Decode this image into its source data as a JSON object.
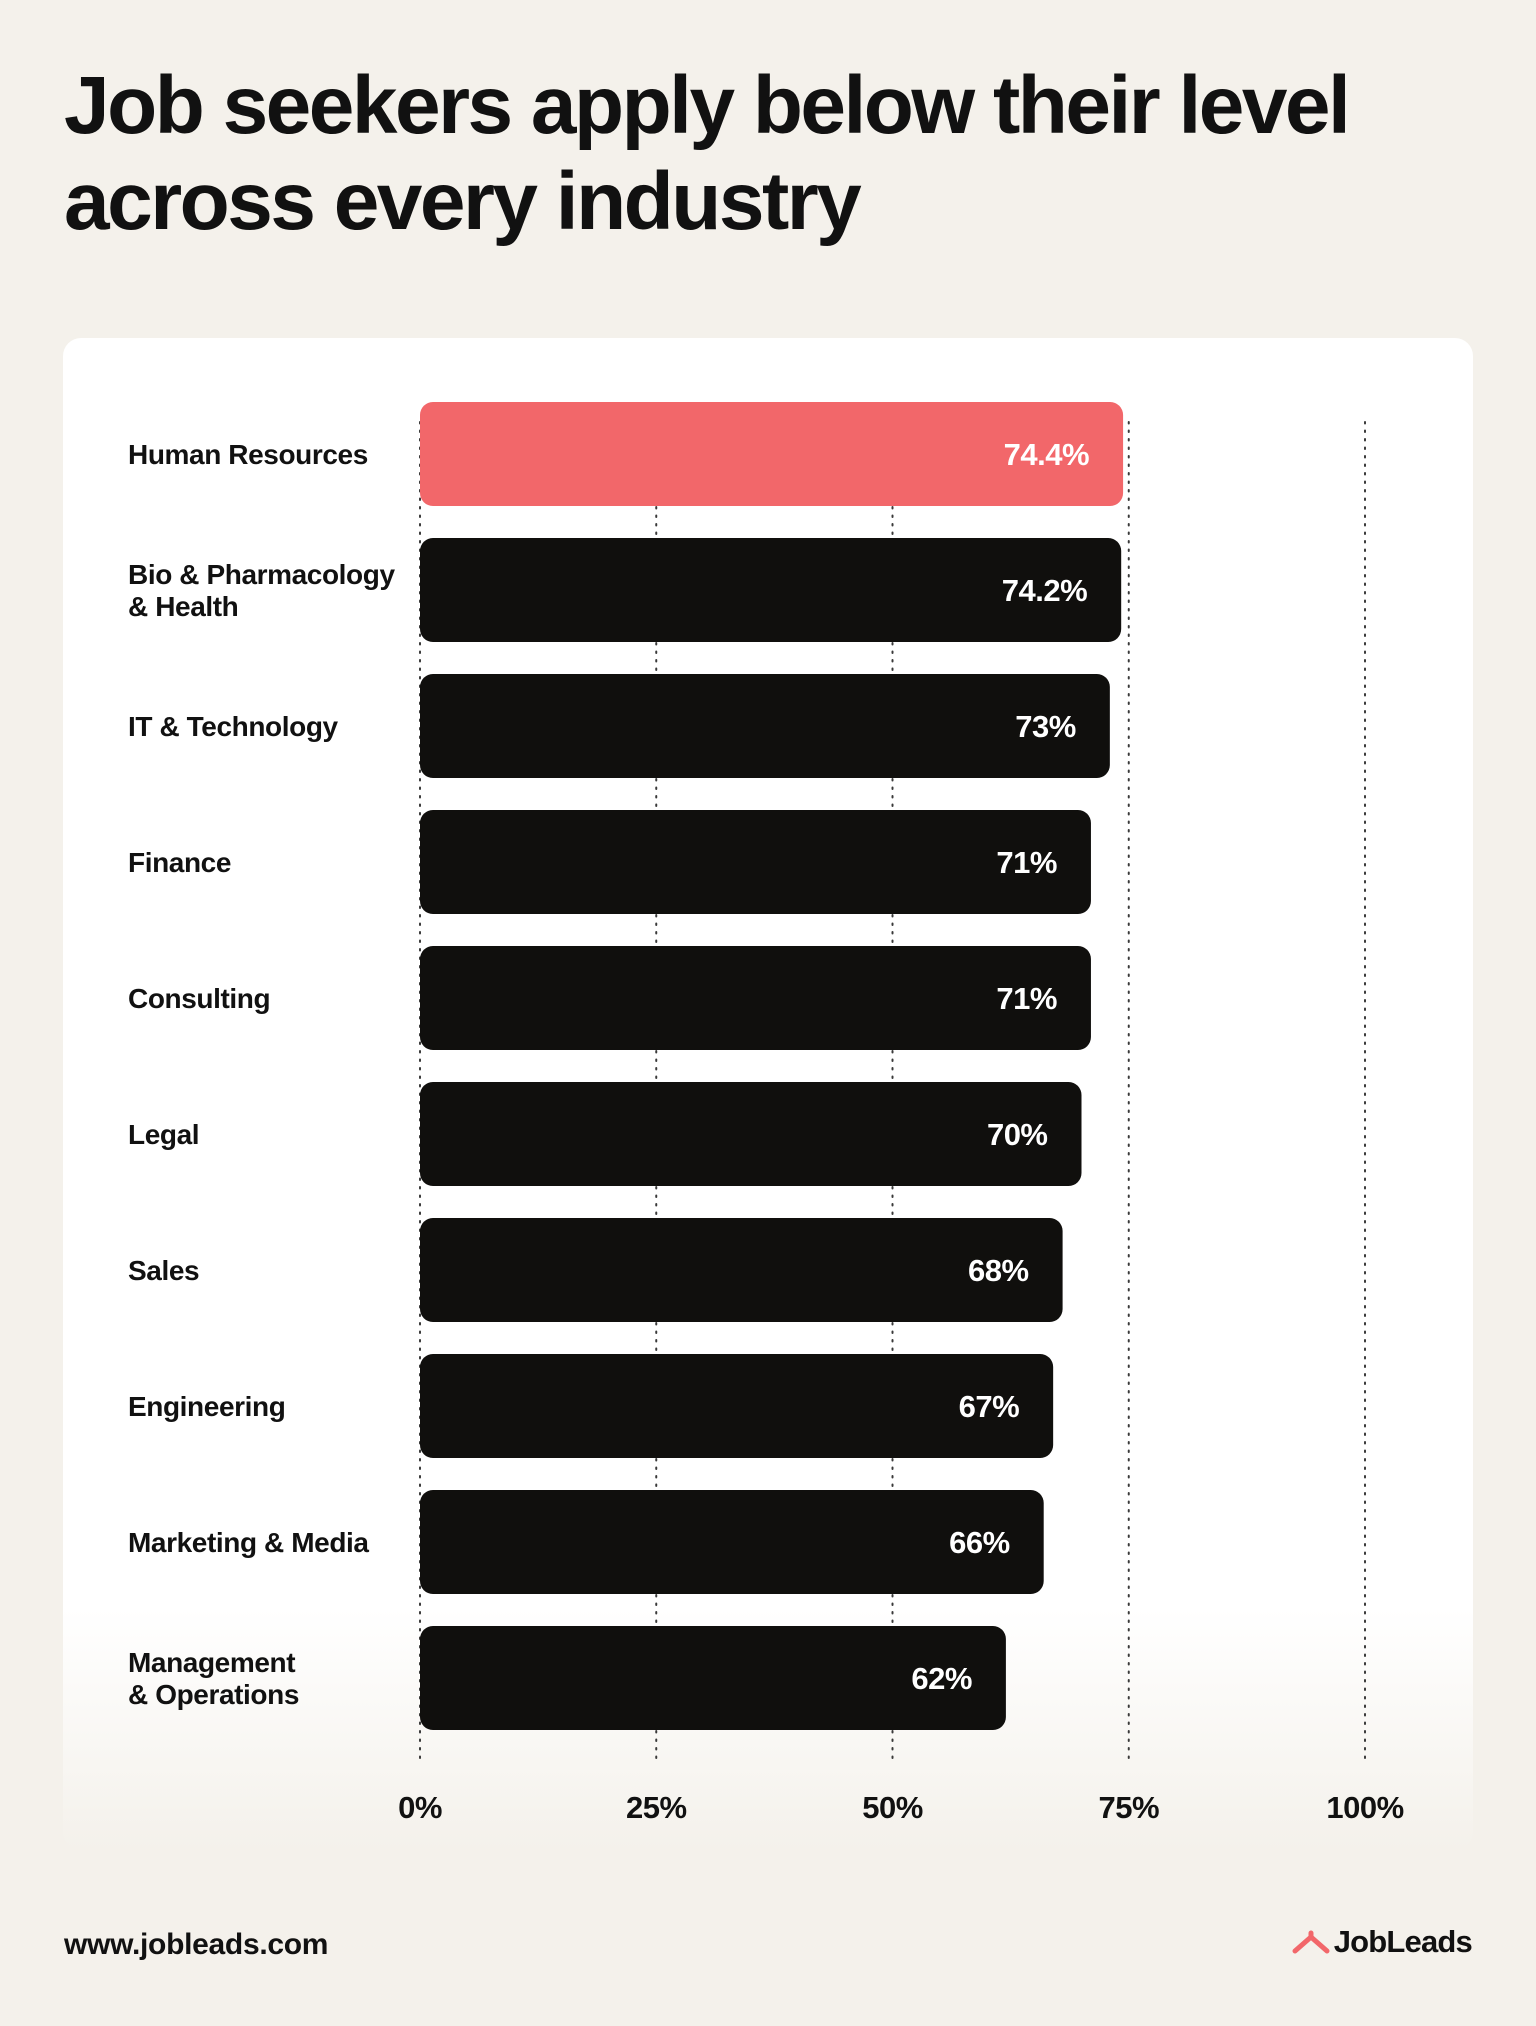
{
  "title_line1": "Job seekers apply below their level",
  "title_line2": "across every industry",
  "footer": {
    "url": "www.jobleads.com",
    "brand": "JobLeads"
  },
  "colors": {
    "highlight": "#f2676a",
    "bar": "#100f0d",
    "background": "#f4f1eb",
    "card": "#ffffff"
  },
  "icons": {
    "brand_logo": "jobleads-logo-icon"
  },
  "chart_data": {
    "type": "bar",
    "orientation": "horizontal",
    "categories": [
      [
        "Human Resources"
      ],
      [
        "Bio & Pharmacology",
        "& Health"
      ],
      [
        "IT & Technology"
      ],
      [
        "Finance"
      ],
      [
        "Consulting"
      ],
      [
        "Legal"
      ],
      [
        "Sales"
      ],
      [
        "Engineering"
      ],
      [
        "Marketing & Media"
      ],
      [
        "Management",
        "& Operations"
      ]
    ],
    "values": [
      74.4,
      74.2,
      73,
      71,
      71,
      70,
      68,
      67,
      66,
      62
    ],
    "value_labels": [
      "74.4%",
      "74.2%",
      "73%",
      "71%",
      "71%",
      "70%",
      "68%",
      "67%",
      "66%",
      "62%"
    ],
    "highlight_index": 0,
    "xlim": [
      0,
      100
    ],
    "xticks": [
      0,
      25,
      50,
      75,
      100
    ],
    "xtick_labels": [
      "0%",
      "25%",
      "50%",
      "75%",
      "100%"
    ],
    "grid": "vertical-dotted",
    "legend": "none"
  }
}
